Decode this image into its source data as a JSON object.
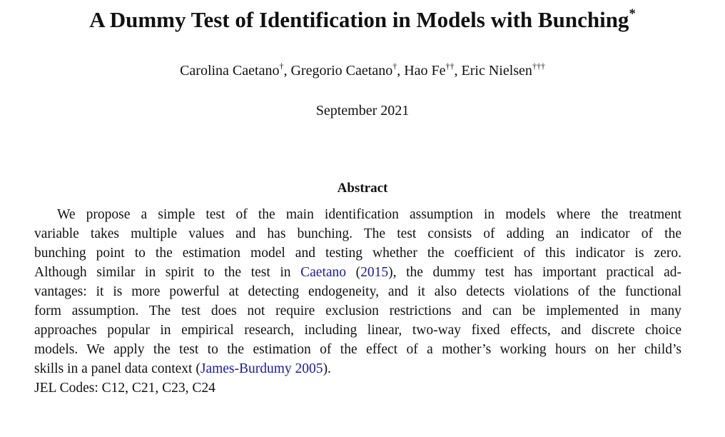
{
  "title": "A Dummy Test of Identification in Models with Bunching",
  "title_mark": "*",
  "authors": [
    {
      "name": "Carolina Caetano",
      "mark": "†"
    },
    {
      "name": "Gregorio Caetano",
      "mark": "†"
    },
    {
      "name": "Hao Fe",
      "mark": "††"
    },
    {
      "name": "Eric Nielsen",
      "mark": "†††"
    }
  ],
  "author_separator": ", ",
  "date": "September 2021",
  "abstract": {
    "heading": "Abstract",
    "lines": [
      [
        {
          "text": "We propose a simple test of the main identification assumption in models where the treatment"
        }
      ],
      [
        {
          "text": "variable takes multiple values and has bunching.  The test consists of adding an indicator of the"
        }
      ],
      [
        {
          "text": "bunching point to the estimation model and testing whether the coefficient of this indicator is zero."
        }
      ],
      [
        {
          "text": "Although similar in spirit to the test in "
        },
        {
          "text": "Caetano",
          "link": true
        },
        {
          "text": " ("
        },
        {
          "text": "2015",
          "link": true
        },
        {
          "text": "), the dummy test has important practical ad-"
        }
      ],
      [
        {
          "text": "vantages: it is more powerful at detecting endogeneity, and it also detects violations of the functional"
        }
      ],
      [
        {
          "text": "form assumption. The test does not require exclusion restrictions and can be implemented in many"
        }
      ],
      [
        {
          "text": "approaches popular in empirical research, including linear, two-way fixed effects, and discrete choice"
        }
      ],
      [
        {
          "text": "models. We apply the test to the estimation of the effect of a mother’s working hours on her child’s"
        }
      ],
      [
        {
          "text": "skills in a panel data context ("
        },
        {
          "text": "James-Burdumy 2005",
          "link": true
        },
        {
          "text": ")."
        }
      ]
    ],
    "jel": "JEL Codes: C12, C21, C23, C24"
  }
}
